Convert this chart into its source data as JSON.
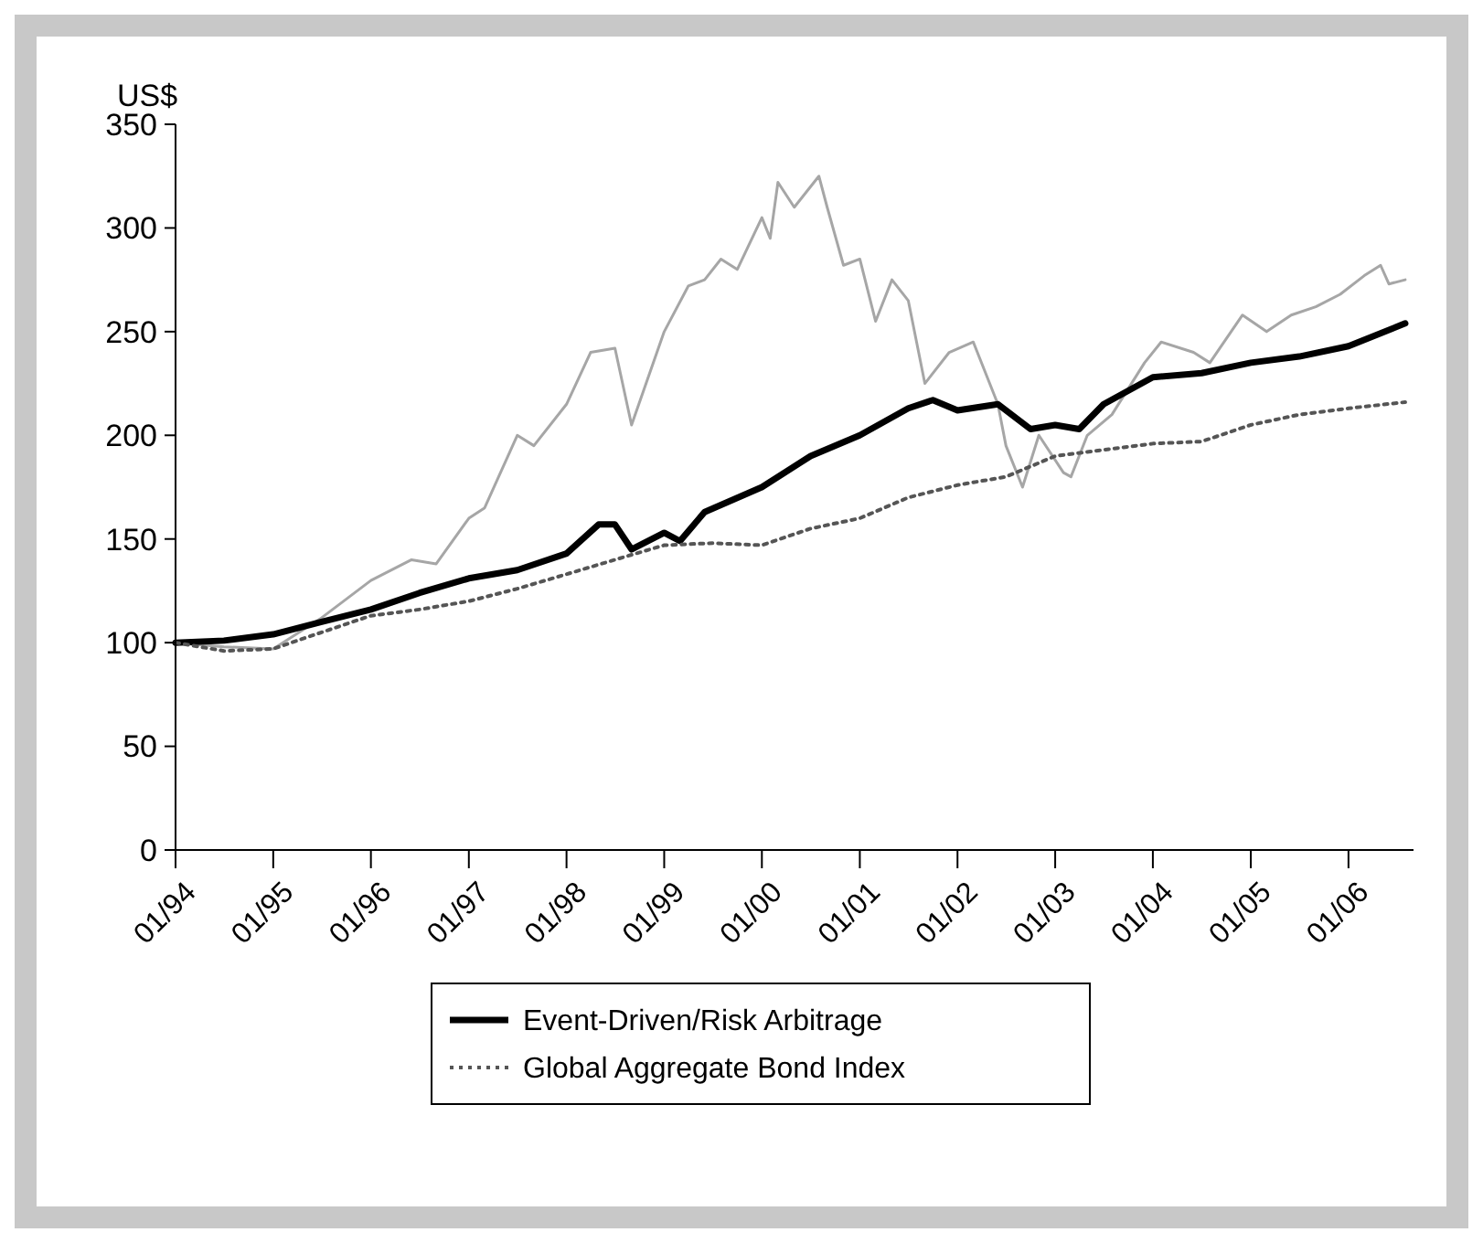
{
  "chart_data": {
    "type": "line",
    "ylabel": "US$",
    "xlim": [
      "1994-01",
      "2006-09"
    ],
    "ylim": [
      0,
      350
    ],
    "yticks": [
      0,
      50,
      100,
      150,
      200,
      250,
      300,
      350
    ],
    "xticks": [
      {
        "value": "1994-01",
        "label": "01/94"
      },
      {
        "value": "1995-01",
        "label": "01/95"
      },
      {
        "value": "1996-01",
        "label": "01/96"
      },
      {
        "value": "1997-01",
        "label": "01/97"
      },
      {
        "value": "1998-01",
        "label": "01/98"
      },
      {
        "value": "1999-01",
        "label": "01/99"
      },
      {
        "value": "2000-01",
        "label": "01/00"
      },
      {
        "value": "2001-01",
        "label": "01/01"
      },
      {
        "value": "2002-01",
        "label": "01/02"
      },
      {
        "value": "2003-01",
        "label": "01/03"
      },
      {
        "value": "2004-01",
        "label": "01/04"
      },
      {
        "value": "2005-01",
        "label": "01/05"
      },
      {
        "value": "2006-01",
        "label": "01/06"
      }
    ],
    "grid": false,
    "legend": "bottom",
    "marker": "none",
    "series": [
      {
        "color": "#a6a6a6",
        "line_style": "solid",
        "x": [
          "1994-01",
          "1994-07",
          "1995-01",
          "1995-07",
          "1996-01",
          "1996-06",
          "1996-09",
          "1997-01",
          "1997-03",
          "1997-07",
          "1997-09",
          "1998-01",
          "1998-04",
          "1998-07",
          "1998-09",
          "1999-01",
          "1999-04",
          "1999-06",
          "1999-08",
          "1999-10",
          "2000-01",
          "2000-02",
          "2000-03",
          "2000-05",
          "2000-08",
          "2000-09",
          "2000-11",
          "2001-01",
          "2001-03",
          "2001-05",
          "2001-07",
          "2001-09",
          "2001-12",
          "2002-03",
          "2002-06",
          "2002-07",
          "2002-09",
          "2002-11",
          "2003-02",
          "2003-03",
          "2003-05",
          "2003-08",
          "2003-12",
          "2004-02",
          "2004-06",
          "2004-08",
          "2004-12",
          "2005-03",
          "2005-06",
          "2005-09",
          "2005-12",
          "2006-03",
          "2006-05",
          "2006-06",
          "2006-08"
        ],
        "values": [
          100,
          98,
          97,
          112,
          130,
          140,
          138,
          160,
          165,
          200,
          195,
          215,
          240,
          242,
          205,
          250,
          272,
          275,
          285,
          280,
          305,
          295,
          322,
          310,
          325,
          310,
          282,
          285,
          255,
          275,
          265,
          225,
          240,
          245,
          215,
          195,
          175,
          200,
          182,
          180,
          200,
          210,
          235,
          245,
          240,
          235,
          258,
          250,
          258,
          262,
          268,
          277,
          282,
          273,
          275
        ]
      },
      {
        "name": "Event-Driven/Risk Arbitrage",
        "color": "#000000",
        "line_style": "solid",
        "x": [
          "1994-01",
          "1994-07",
          "1995-01",
          "1995-07",
          "1996-01",
          "1996-07",
          "1997-01",
          "1997-07",
          "1998-01",
          "1998-05",
          "1998-07",
          "1998-09",
          "1999-01",
          "1999-03",
          "1999-06",
          "2000-01",
          "2000-07",
          "2001-01",
          "2001-07",
          "2001-10",
          "2002-01",
          "2002-06",
          "2002-10",
          "2003-01",
          "2003-04",
          "2003-07",
          "2004-01",
          "2004-07",
          "2005-01",
          "2005-07",
          "2006-01",
          "2006-08"
        ],
        "values": [
          100,
          101,
          104,
          110,
          116,
          124,
          131,
          135,
          143,
          157,
          157,
          145,
          153,
          149,
          163,
          175,
          190,
          200,
          213,
          217,
          212,
          215,
          203,
          205,
          203,
          215,
          228,
          230,
          235,
          238,
          243,
          254
        ]
      },
      {
        "name": "Global Aggregate Bond Index",
        "color": "#555555",
        "line_style": "dotted",
        "x": [
          "1994-01",
          "1994-07",
          "1995-01",
          "1995-07",
          "1996-01",
          "1996-07",
          "1997-01",
          "1997-07",
          "1998-01",
          "1998-07",
          "1999-01",
          "1999-07",
          "2000-01",
          "2000-07",
          "2001-01",
          "2001-07",
          "2002-01",
          "2002-07",
          "2003-01",
          "2003-07",
          "2004-01",
          "2004-07",
          "2005-01",
          "2005-07",
          "2006-01",
          "2006-08"
        ],
        "values": [
          100,
          96,
          97,
          105,
          113,
          116,
          120,
          126,
          133,
          140,
          147,
          148,
          147,
          155,
          160,
          170,
          176,
          180,
          190,
          193,
          196,
          197,
          205,
          210,
          213,
          216
        ]
      }
    ]
  }
}
